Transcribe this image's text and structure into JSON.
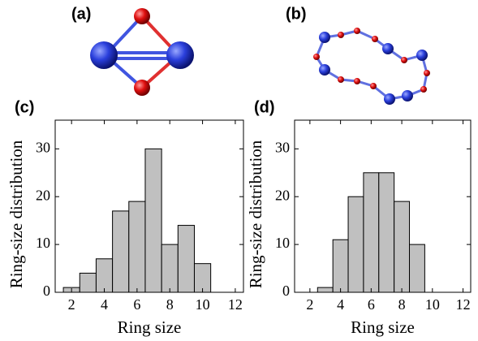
{
  "structures": [
    {
      "label": "(a)"
    },
    {
      "label": "(b)"
    }
  ],
  "chart_data": [
    {
      "type": "histogram",
      "panel_label": "(c)",
      "xlabel": "Ring size",
      "ylabel": "Ring-size distribution",
      "bins": [
        1.5,
        2.5,
        3.5,
        4.5,
        5.5,
        6.5,
        7.5,
        8.5,
        9.5,
        10.5
      ],
      "values": [
        1,
        4,
        7,
        17,
        19,
        30,
        10,
        14,
        6
      ],
      "color": "#c0c0c0",
      "xlim": [
        1,
        12.5
      ],
      "ylim": [
        0,
        36
      ],
      "xticks": [
        2,
        4,
        6,
        8,
        10,
        12
      ],
      "yticks": [
        0,
        10,
        20,
        30
      ]
    },
    {
      "type": "histogram",
      "panel_label": "(d)",
      "xlabel": "Ring size",
      "ylabel": "Ring-size distribution",
      "bins": [
        2.5,
        3.5,
        4.5,
        5.5,
        6.5,
        7.5,
        8.5,
        9.5
      ],
      "values": [
        1,
        11,
        20,
        25,
        25,
        19,
        10
      ],
      "color": "#c0c0c0",
      "xlim": [
        1,
        12.5
      ],
      "ylim": [
        0,
        36
      ],
      "xticks": [
        2,
        4,
        6,
        8,
        10,
        12
      ],
      "yticks": [
        0,
        10,
        20,
        30
      ]
    }
  ]
}
